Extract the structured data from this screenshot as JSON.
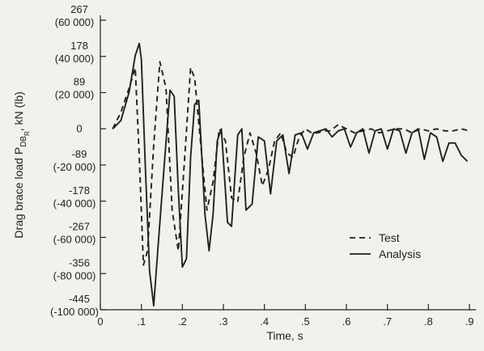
{
  "chart_data": {
    "type": "line",
    "xlabel": "Time, s",
    "ylabel": "Drag brace load P",
    "ylabel_sub1": "DB",
    "ylabel_sub2": "R",
    "ylabel_unit": ", kN (lb)",
    "xlim": [
      0,
      0.9
    ],
    "ylim": [
      -445,
      267
    ],
    "x_ticks": [
      {
        "value": 0,
        "label": "0"
      },
      {
        "value": 0.1,
        "label": ".1"
      },
      {
        "value": 0.2,
        "label": ".2"
      },
      {
        "value": 0.3,
        "label": ".3"
      },
      {
        "value": 0.4,
        "label": ".4"
      },
      {
        "value": 0.5,
        "label": ".5"
      },
      {
        "value": 0.6,
        "label": ".6"
      },
      {
        "value": 0.7,
        "label": ".7"
      },
      {
        "value": 0.8,
        "label": ".8"
      },
      {
        "value": 0.9,
        "label": ".9"
      }
    ],
    "y_ticks": [
      {
        "value": 267,
        "label": "267",
        "label2": "(60 000)"
      },
      {
        "value": 178,
        "label": "178",
        "label2": "(40 000)"
      },
      {
        "value": 89,
        "label": "89",
        "label2": "(20 000)"
      },
      {
        "value": 0,
        "label": "0",
        "label2": ""
      },
      {
        "value": -89,
        "label": "-89",
        "label2": "(-20 000)"
      },
      {
        "value": -178,
        "label": "-178",
        "label2": "(-40 000)"
      },
      {
        "value": -267,
        "label": "-267",
        "label2": "(-60 000)"
      },
      {
        "value": -356,
        "label": "-356",
        "label2": "(-80 000)"
      },
      {
        "value": -445,
        "label": "-445",
        "label2": "(-100 000)"
      }
    ],
    "legend_position": "lower-right",
    "series": [
      {
        "name": "Test",
        "style": "dashed",
        "x": [
          0.03,
          0.05,
          0.07,
          0.085,
          0.095,
          0.105,
          0.115,
          0.13,
          0.145,
          0.16,
          0.175,
          0.19,
          0.205,
          0.22,
          0.23,
          0.245,
          0.26,
          0.275,
          0.29,
          0.305,
          0.32,
          0.335,
          0.35,
          0.365,
          0.38,
          0.395,
          0.41,
          0.425,
          0.44,
          0.455,
          0.47,
          0.485,
          0.5,
          0.515,
          0.53,
          0.545,
          0.56,
          0.58,
          0.6,
          0.62,
          0.64,
          0.66,
          0.68,
          0.7,
          0.72,
          0.74,
          0.76,
          0.78,
          0.8,
          0.82,
          0.84,
          0.86,
          0.88,
          0.9
        ],
        "y": [
          0,
          40,
          100,
          150,
          -70,
          -335,
          -300,
          -40,
          165,
          100,
          -200,
          -300,
          -80,
          150,
          125,
          -40,
          -200,
          -130,
          0,
          -30,
          -170,
          -180,
          -70,
          -10,
          -60,
          -140,
          -100,
          -30,
          -10,
          -60,
          -70,
          -20,
          0,
          -10,
          -10,
          -5,
          -5,
          10,
          0,
          -10,
          -5,
          0,
          -10,
          -5,
          0,
          0,
          -10,
          0,
          -5,
          0,
          -5,
          -5,
          0,
          -5
        ]
      },
      {
        "name": "Analysis",
        "style": "solid",
        "x": [
          0.03,
          0.05,
          0.07,
          0.085,
          0.095,
          0.1,
          0.11,
          0.12,
          0.13,
          0.14,
          0.155,
          0.17,
          0.18,
          0.19,
          0.2,
          0.21,
          0.22,
          0.23,
          0.24,
          0.255,
          0.265,
          0.275,
          0.285,
          0.295,
          0.31,
          0.32,
          0.335,
          0.345,
          0.355,
          0.37,
          0.385,
          0.4,
          0.415,
          0.43,
          0.445,
          0.46,
          0.475,
          0.49,
          0.505,
          0.52,
          0.535,
          0.55,
          0.565,
          0.58,
          0.595,
          0.61,
          0.625,
          0.64,
          0.655,
          0.67,
          0.685,
          0.7,
          0.715,
          0.73,
          0.745,
          0.76,
          0.775,
          0.79,
          0.805,
          0.82,
          0.835,
          0.85,
          0.865,
          0.88,
          0.895
        ],
        "y": [
          0,
          20,
          90,
          180,
          210,
          170,
          -100,
          -350,
          -435,
          -300,
          -100,
          95,
          80,
          -150,
          -340,
          -320,
          -70,
          60,
          70,
          -210,
          -300,
          -210,
          -30,
          0,
          -230,
          -240,
          -15,
          0,
          -200,
          -185,
          -20,
          -30,
          -160,
          -30,
          -15,
          -110,
          -15,
          -10,
          -50,
          -10,
          -5,
          0,
          -20,
          -5,
          0,
          -45,
          -10,
          0,
          -60,
          -5,
          0,
          -50,
          0,
          -5,
          -60,
          -10,
          0,
          -75,
          -10,
          -20,
          -80,
          -35,
          -35,
          -65,
          -80
        ]
      }
    ]
  }
}
